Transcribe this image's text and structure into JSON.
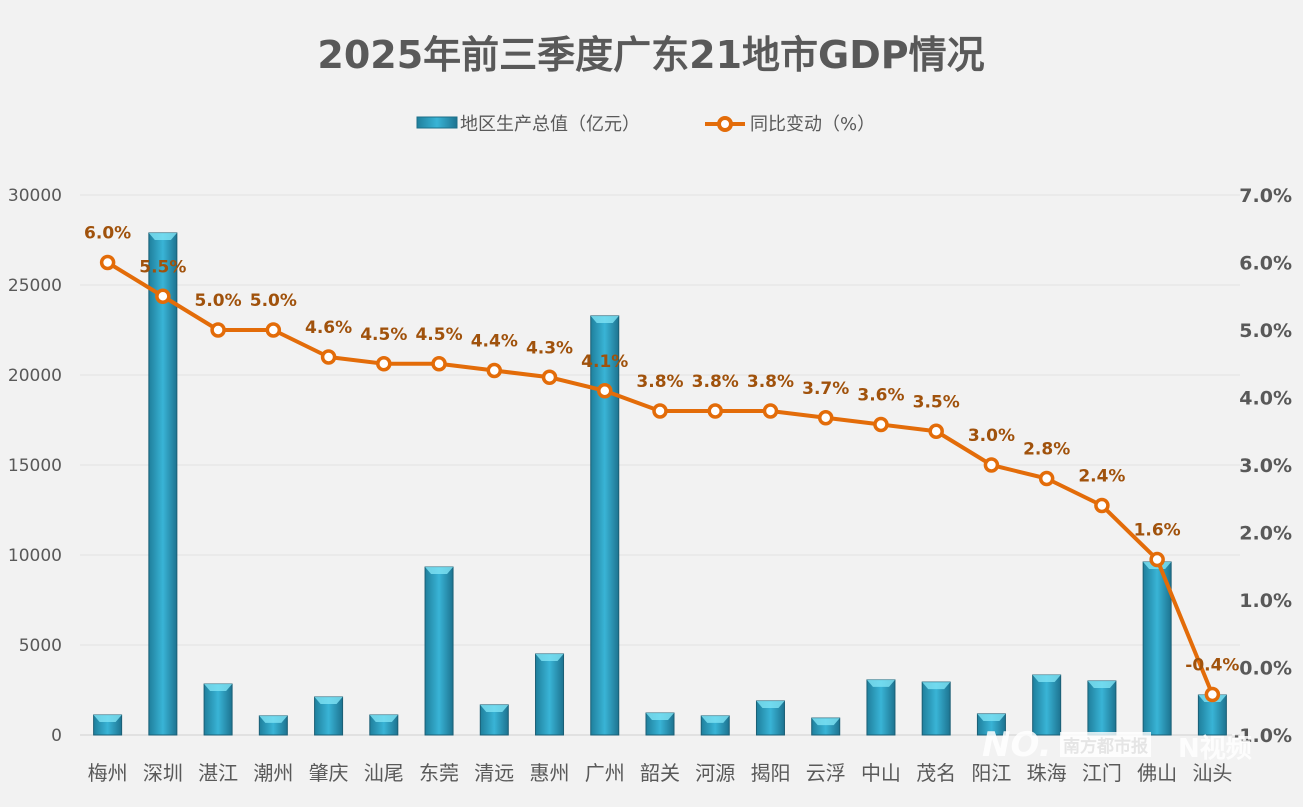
{
  "chart_data": {
    "type": "bar+line",
    "title": "2025年前三季度广东21地市GDP情况",
    "categories": [
      "梅州",
      "深圳",
      "湛江",
      "潮州",
      "肇庆",
      "汕尾",
      "东莞",
      "清远",
      "惠州",
      "广州",
      "韶关",
      "河源",
      "揭阳",
      "云浮",
      "中山",
      "茂名",
      "阳江",
      "珠海",
      "江门",
      "佛山",
      "汕头"
    ],
    "series": [
      {
        "name": "地区生产总值（亿元）",
        "type": "bar",
        "axis": "left",
        "values": [
          1110,
          27890,
          2830,
          1060,
          2110,
          1110,
          9330,
          1670,
          4500,
          23280,
          1220,
          1060,
          1890,
          940,
          3060,
          2940,
          1170,
          3330,
          3000,
          9610,
          2220
        ]
      },
      {
        "name": "同比变动（%）",
        "type": "line",
        "axis": "right",
        "values": [
          6.0,
          5.5,
          5.0,
          5.0,
          4.6,
          4.5,
          4.5,
          4.4,
          4.3,
          4.1,
          3.8,
          3.8,
          3.8,
          3.7,
          3.6,
          3.5,
          3.0,
          2.8,
          2.4,
          1.6,
          -0.4
        ],
        "labels": [
          "6.0%",
          "5.5%",
          "5.0%",
          "5.0%",
          "4.6%",
          "4.5%",
          "4.5%",
          "4.4%",
          "4.3%",
          "4.1%",
          "3.8%",
          "3.8%",
          "3.8%",
          "3.7%",
          "3.6%",
          "3.5%",
          "3.0%",
          "2.8%",
          "2.4%",
          "1.6%",
          "-0.4%"
        ]
      }
    ],
    "left_axis": {
      "ylim": [
        0,
        30000
      ],
      "ticks": [
        "0",
        "5000",
        "10000",
        "15000",
        "20000",
        "25000",
        "30000"
      ]
    },
    "right_axis": {
      "ylim": [
        -1,
        7
      ],
      "ticks": [
        "-1.0%",
        "0.0%",
        "1.0%",
        "2.0%",
        "3.0%",
        "4.0%",
        "5.0%",
        "6.0%",
        "7.0%"
      ]
    },
    "grid": true,
    "legend": "top",
    "colors": {
      "bar": "#2fa8c8",
      "line": "#e36c09",
      "label": "#a0520c",
      "background": "#f2f2f2"
    }
  },
  "watermark": {
    "brand1": "南方都市报",
    "brand2": "N视频"
  }
}
